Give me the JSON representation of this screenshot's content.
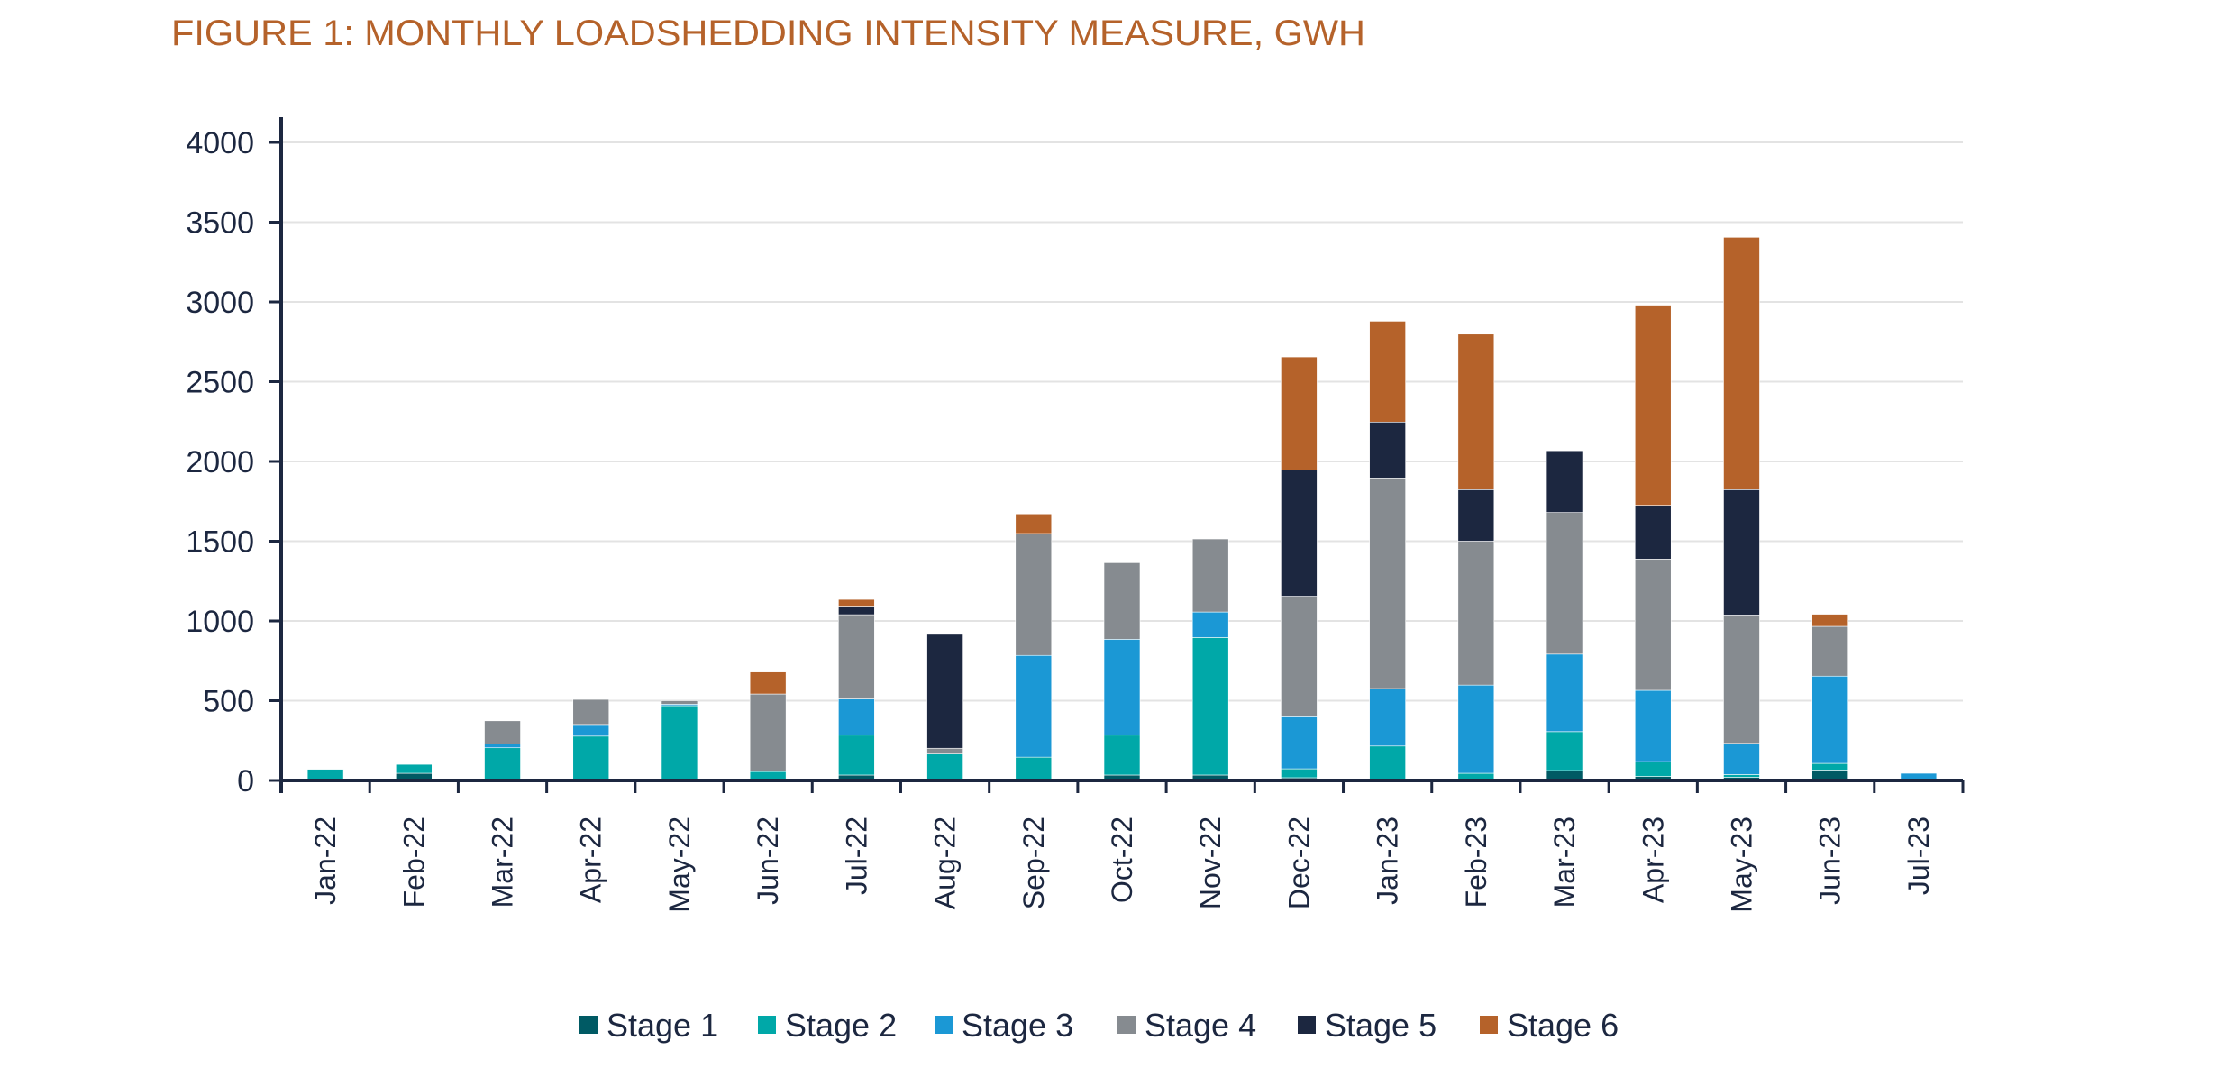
{
  "chart_data": {
    "type": "bar",
    "stacked": true,
    "title": "FIGURE 1: MONTHLY LOADSHEDDING INTENSITY MEASURE, GWH",
    "xlabel": "",
    "ylabel": "",
    "ylim": [
      0,
      4000
    ],
    "yticks": [
      "0",
      "500",
      "1000",
      "1500",
      "2000",
      "2500",
      "3000",
      "3500",
      "4000"
    ],
    "ytick_values": [
      0,
      500,
      1000,
      1500,
      2000,
      2500,
      3000,
      3500,
      4000
    ],
    "grid": true,
    "legend_position": "bottom",
    "categories": [
      "Jan-22",
      "Feb-22",
      "Mar-22",
      "Apr-22",
      "May-22",
      "Jun-22",
      "Jul-22",
      "Aug-22",
      "Sep-22",
      "Oct-22",
      "Nov-22",
      "Dec-22",
      "Jan-23",
      "Feb-23",
      "Mar-23",
      "Apr-23",
      "May-23",
      "Jun-23",
      "Jul-23"
    ],
    "series": [
      {
        "name": "Stage 1",
        "color": "#005a64",
        "values": [
          0,
          45,
          0,
          0,
          3,
          0,
          34,
          0,
          0,
          34,
          34,
          17,
          0,
          0,
          62,
          25,
          20,
          65,
          0
        ]
      },
      {
        "name": "Stage 2",
        "color": "#00a8a8",
        "values": [
          70,
          56,
          205,
          278,
          466,
          56,
          250,
          166,
          146,
          250,
          862,
          56,
          216,
          45,
          244,
          93,
          17,
          42,
          0
        ]
      },
      {
        "name": "Stage 3",
        "color": "#1b98d5",
        "values": [
          0,
          0,
          23,
          73,
          9,
          0,
          227,
          0,
          638,
          601,
          160,
          326,
          360,
          553,
          486,
          447,
          196,
          547,
          45
        ]
      },
      {
        "name": "Stage 4",
        "color": "#868b90",
        "values": [
          0,
          0,
          146,
          157,
          22,
          486,
          528,
          36,
          764,
          480,
          458,
          756,
          1320,
          902,
          888,
          823,
          804,
          312,
          0
        ]
      },
      {
        "name": "Stage 5",
        "color": "#1c2740",
        "values": [
          0,
          0,
          0,
          0,
          0,
          0,
          54,
          714,
          0,
          0,
          0,
          792,
          351,
          323,
          387,
          337,
          786,
          0,
          0
        ]
      },
      {
        "name": "Stage 6",
        "color": "#b5622a",
        "values": [
          0,
          0,
          0,
          0,
          0,
          138,
          42,
          0,
          123,
          0,
          0,
          708,
          632,
          975,
          0,
          1255,
          1582,
          76,
          0
        ]
      }
    ]
  }
}
